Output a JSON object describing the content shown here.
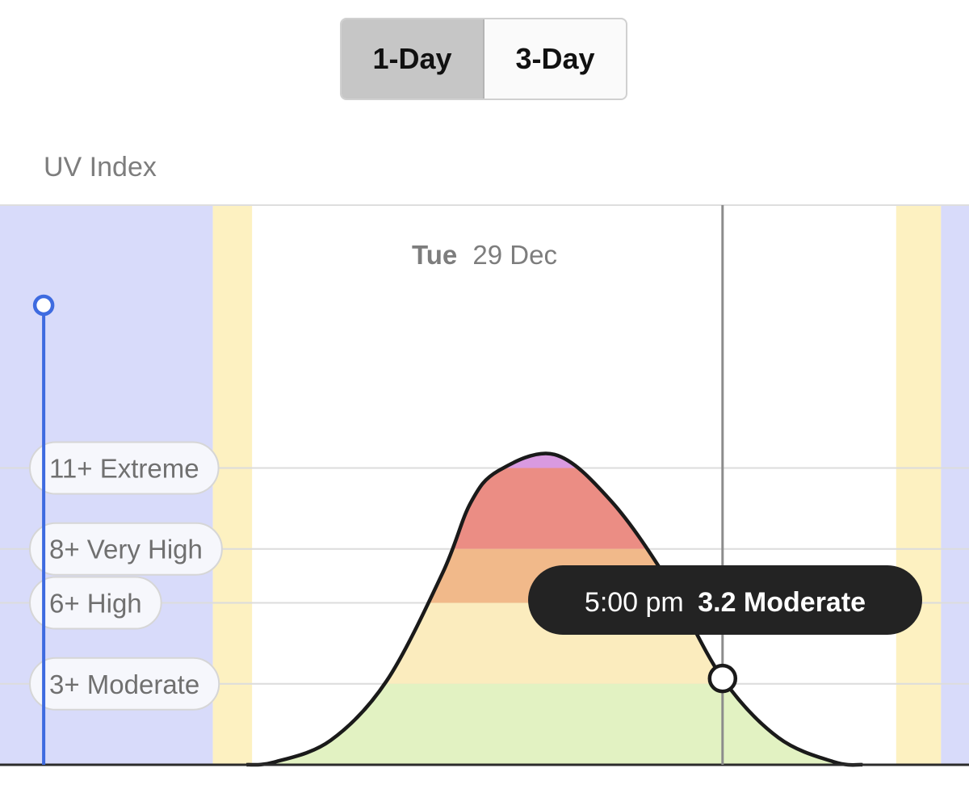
{
  "segmented_control": {
    "options": [
      "1-Day",
      "3-Day"
    ],
    "selected": "1-Day"
  },
  "header": {
    "label": "UV Index"
  },
  "chart_data": {
    "type": "area",
    "title": "UV Index",
    "date": {
      "weekday": "Tue",
      "date": "29 Dec"
    },
    "x_range_hours": [
      4.1,
      21.4
    ],
    "y_range": [
      0,
      13.5
    ],
    "series": [
      {
        "name": "UV Index",
        "x": [
          8.5,
          9,
          10,
          11,
          12,
          12.5,
          13,
          14,
          15,
          16,
          17,
          18,
          19,
          19.5
        ],
        "y": [
          0,
          0.1,
          0.9,
          3.1,
          7.1,
          9.7,
          10.9,
          11.5,
          9.8,
          6.9,
          3.2,
          1.0,
          0.1,
          0
        ]
      }
    ],
    "thresholds": [
      {
        "value": 11,
        "label": "11+ Extreme",
        "color": "#d99ae0"
      },
      {
        "value": 8,
        "label": "8+ Very High",
        "color": "#eb8d84"
      },
      {
        "value": 6,
        "label": "6+ High",
        "color": "#f1b98a"
      },
      {
        "value": 3,
        "label": "3+ Moderate",
        "color": "#fbecbe"
      },
      {
        "value": 0,
        "label": "",
        "color": "#e2f2c2"
      }
    ],
    "bands": {
      "night_color": "#d8dbfa",
      "twilight_color": "#fdf1c1",
      "night_before_end": 7.9,
      "twilight_start": 7.9,
      "day_start": 8.6,
      "day_end": 20.1,
      "twilight_end": 20.9
    },
    "current_time_hour": 4.88,
    "selection": {
      "hour": 17,
      "time_label": "5:00 pm",
      "value_label": "3.2 Moderate"
    }
  }
}
